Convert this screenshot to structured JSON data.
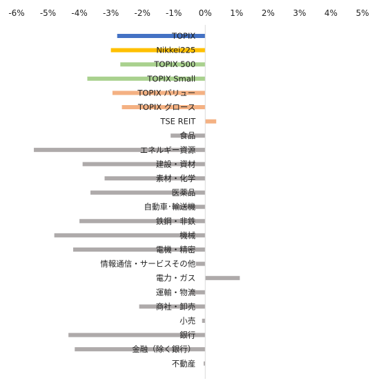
{
  "chart_data": {
    "type": "bar",
    "orientation": "horizontal",
    "categories": [
      "TOPIX",
      "Nikkei225",
      "TOPIX 500",
      "TOPIX Small",
      "TOPIX バリュー",
      "TOPIX グロース",
      "TSE REIT",
      "食品",
      "エネルギー資源",
      "建設・資材",
      "素材・化学",
      "医薬品",
      "自動車･輸送機",
      "鉄鋼・非鉄",
      "機械",
      "電機・精密",
      "情報通信・サービスその他",
      "電力・ガス",
      "運輸・物流",
      "商社・卸売",
      "小売",
      "銀行",
      "金融（除く銀行）",
      "不動産"
    ],
    "values": [
      -2.8,
      -3.0,
      -2.7,
      -3.75,
      -2.95,
      -2.65,
      0.35,
      -1.1,
      -5.45,
      -3.9,
      -3.2,
      -3.65,
      -1.0,
      -4.0,
      -4.8,
      -4.2,
      -0.3,
      1.1,
      -0.5,
      -2.1,
      -0.1,
      -4.35,
      -4.15,
      -0.05
    ],
    "colors": [
      "#4472c4",
      "#ffc000",
      "#a9d18e",
      "#a9d18e",
      "#f4b183",
      "#f4b183",
      "#f4b183",
      "#aeaaaa",
      "#aeaaaa",
      "#aeaaaa",
      "#aeaaaa",
      "#aeaaaa",
      "#aeaaaa",
      "#aeaaaa",
      "#aeaaaa",
      "#aeaaaa",
      "#aeaaaa",
      "#aeaaaa",
      "#aeaaaa",
      "#aeaaaa",
      "#aeaaaa",
      "#aeaaaa",
      "#aeaaaa",
      "#aeaaaa"
    ],
    "xlim": [
      -6,
      5
    ],
    "x_ticks": [
      -6,
      -5,
      -4,
      -3,
      -2,
      -1,
      0,
      1,
      2,
      3,
      4,
      5
    ],
    "x_tick_labels": [
      "-6%",
      "-5%",
      "-4%",
      "-3%",
      "-2%",
      "-1%",
      "0%",
      "1%",
      "2%",
      "3%",
      "4%",
      "5%"
    ],
    "x_axis_position": "top",
    "grid": false,
    "legend": "none",
    "title": "",
    "xlabel": "",
    "ylabel": ""
  }
}
